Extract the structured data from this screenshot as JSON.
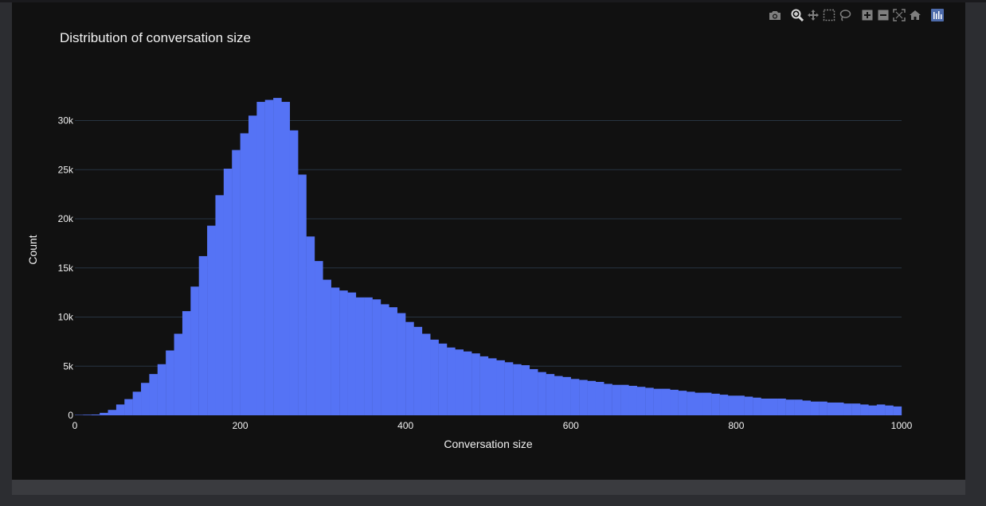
{
  "chart_data": {
    "type": "bar",
    "title": "Distribution of conversation size",
    "xlabel": "Conversation size",
    "ylabel": "Count",
    "xlim": [
      0,
      1000
    ],
    "ylim": [
      0,
      33000
    ],
    "bin_width": 10,
    "x_ticks": [
      0,
      200,
      400,
      600,
      800,
      1000
    ],
    "x_tick_labels": [
      "0",
      "200",
      "400",
      "600",
      "800",
      "1000"
    ],
    "y_ticks": [
      0,
      5000,
      10000,
      15000,
      20000,
      25000,
      30000
    ],
    "y_tick_labels": [
      "0",
      "5k",
      "10k",
      "15k",
      "20k",
      "25k",
      "30k"
    ],
    "grid": true,
    "bar_color": "#5573f5",
    "bins_start": [
      0,
      10,
      20,
      30,
      40,
      50,
      60,
      70,
      80,
      90,
      100,
      110,
      120,
      130,
      140,
      150,
      160,
      170,
      180,
      190,
      200,
      210,
      220,
      230,
      240,
      250,
      260,
      270,
      280,
      290,
      300,
      310,
      320,
      330,
      340,
      350,
      360,
      370,
      380,
      390,
      400,
      410,
      420,
      430,
      440,
      450,
      460,
      470,
      480,
      490,
      500,
      510,
      520,
      530,
      540,
      550,
      560,
      570,
      580,
      590,
      600,
      610,
      620,
      630,
      640,
      650,
      660,
      670,
      680,
      690,
      700,
      710,
      720,
      730,
      740,
      750,
      760,
      770,
      780,
      790,
      800,
      810,
      820,
      830,
      840,
      850,
      860,
      870,
      880,
      890,
      900,
      910,
      920,
      930,
      940,
      950,
      960,
      970,
      980,
      990
    ],
    "values": [
      40,
      60,
      80,
      250,
      550,
      1100,
      1650,
      2400,
      3300,
      4200,
      5200,
      6600,
      8300,
      10600,
      13100,
      16200,
      19300,
      22400,
      25100,
      27000,
      28700,
      30500,
      31900,
      32100,
      32300,
      31900,
      29000,
      24500,
      18200,
      15700,
      13800,
      13000,
      12700,
      12500,
      12000,
      12000,
      11800,
      11300,
      11000,
      10400,
      9500,
      9000,
      8300,
      7700,
      7300,
      6900,
      6700,
      6500,
      6300,
      6000,
      5800,
      5600,
      5400,
      5200,
      5100,
      4700,
      4400,
      4200,
      4000,
      3900,
      3700,
      3600,
      3500,
      3400,
      3200,
      3100,
      3100,
      3000,
      2900,
      2800,
      2700,
      2700,
      2600,
      2500,
      2400,
      2300,
      2300,
      2200,
      2100,
      2000,
      2000,
      1900,
      1800,
      1700,
      1700,
      1700,
      1600,
      1600,
      1500,
      1400,
      1400,
      1300,
      1300,
      1200,
      1200,
      1100,
      1000,
      1100,
      1000,
      900
    ]
  },
  "modebar": {
    "buttons": [
      {
        "name": "camera-icon",
        "label": "Download plot as a png"
      },
      {
        "name": "zoom-icon",
        "label": "Zoom"
      },
      {
        "name": "pan-icon",
        "label": "Pan"
      },
      {
        "name": "box-select-icon",
        "label": "Box Select"
      },
      {
        "name": "lasso-select-icon",
        "label": "Lasso Select"
      },
      {
        "name": "zoom-in-icon",
        "label": "Zoom in"
      },
      {
        "name": "zoom-out-icon",
        "label": "Zoom out"
      },
      {
        "name": "autoscale-icon",
        "label": "Autoscale"
      },
      {
        "name": "reset-axes-icon",
        "label": "Reset axes"
      },
      {
        "name": "plotly-logo-icon",
        "label": "Produced with Plotly"
      }
    ]
  },
  "colors": {
    "background": "#111111",
    "grid": "#283442",
    "text": "#f2f2f2",
    "bar": "#5573f5",
    "modebar_icon": "#7f7f7f",
    "modebar_active": "#d9d9d9"
  }
}
